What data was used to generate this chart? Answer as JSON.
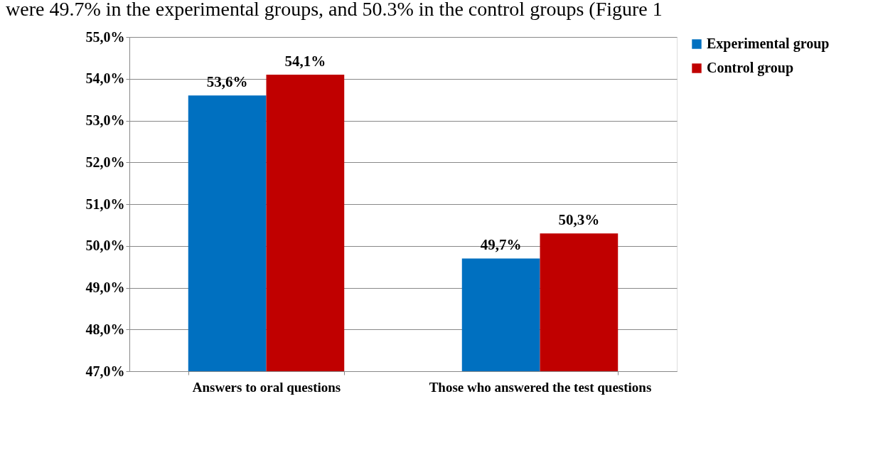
{
  "chart_data": {
    "type": "bar",
    "categories": [
      "Answers to oral questions",
      "Those who answered the test questions"
    ],
    "series": [
      {
        "name": "Experimental group",
        "color": "#0070c0",
        "values": [
          53.6,
          49.7
        ],
        "value_labels": [
          "53,6%",
          "49,7%"
        ]
      },
      {
        "name": "Control group",
        "color": "#c00000",
        "values": [
          54.1,
          50.3
        ],
        "value_labels": [
          "54,1%",
          "50,3%"
        ]
      }
    ],
    "ylim": [
      47,
      55
    ],
    "yticks": [
      {
        "value": 47,
        "label": "47,0%"
      },
      {
        "value": 48,
        "label": "48,0%"
      },
      {
        "value": 49,
        "label": "49,0%"
      },
      {
        "value": 50,
        "label": "50,0%"
      },
      {
        "value": 51,
        "label": "51,0%"
      },
      {
        "value": 52,
        "label": "52,0%"
      },
      {
        "value": 53,
        "label": "53,0%"
      },
      {
        "value": 54,
        "label": "54,0%"
      },
      {
        "value": 55,
        "label": "55,0%"
      }
    ],
    "grid": "y",
    "legend": "right",
    "annotations": [
      "were 49.7% in the experimental groups, and 50.3% in the control groups (Figure 1"
    ]
  }
}
